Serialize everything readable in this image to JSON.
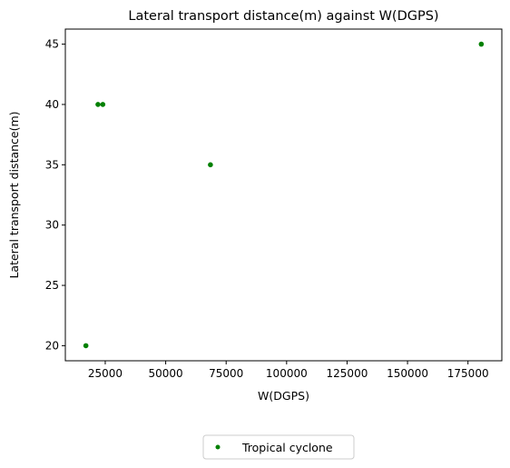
{
  "chart_data": {
    "type": "scatter",
    "title": "Lateral transport distance(m) against W(DGPS)",
    "xlabel": "W(DGPS)",
    "ylabel": "Lateral transport distance(m)",
    "xlim": [
      8500,
      189000
    ],
    "ylim": [
      18.75,
      46.25
    ],
    "xticks": [
      25000,
      50000,
      75000,
      100000,
      125000,
      150000,
      175000
    ],
    "yticks": [
      20,
      25,
      30,
      35,
      40,
      45
    ],
    "grid": false,
    "legend_position": "bottom-center",
    "series": [
      {
        "name": "Tropical cyclone",
        "color": "#008000",
        "points": [
          {
            "x": 17000,
            "y": 20
          },
          {
            "x": 22000,
            "y": 40
          },
          {
            "x": 24000,
            "y": 40
          },
          {
            "x": 68500,
            "y": 35
          },
          {
            "x": 180500,
            "y": 45
          }
        ]
      }
    ]
  }
}
